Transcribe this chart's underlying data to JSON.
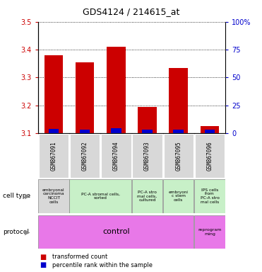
{
  "title": "GDS4124 / 214615_at",
  "samples": [
    "GSM867091",
    "GSM867092",
    "GSM867094",
    "GSM867093",
    "GSM867095",
    "GSM867096"
  ],
  "red_values": [
    3.38,
    3.355,
    3.41,
    3.195,
    3.335,
    3.125
  ],
  "blue_values": [
    3.115,
    3.113,
    3.117,
    3.113,
    3.114,
    3.112
  ],
  "bar_base": 3.1,
  "ylim": [
    3.1,
    3.5
  ],
  "y_ticks_left": [
    3.1,
    3.2,
    3.3,
    3.4,
    3.5
  ],
  "y_ticks_right": [
    0,
    25,
    50,
    75,
    100
  ],
  "y_right_labels": [
    "0",
    "25",
    "50",
    "75",
    "100%"
  ],
  "red_color": "#cc0000",
  "blue_color": "#0000cc",
  "bg_color": "#d8d8d8",
  "cell_type_gray": "#d8d8d8",
  "cell_type_green": "#c8f0c8",
  "protocol_color": "#e878e8",
  "legend_red": "transformed count",
  "legend_blue": "percentile rank within the sample",
  "cell_groups": [
    {
      "start": 0,
      "end": 1,
      "color": "#d8d8d8",
      "text": "embryonal\ncarcinoma\nNCCIT\ncells"
    },
    {
      "start": 1,
      "end": 3,
      "color": "#c8f0c8",
      "text": "PC-A stromal cells,\nsorted"
    },
    {
      "start": 3,
      "end": 4,
      "color": "#c8f0c8",
      "text": "PC-A stro\nmal cells,\ncultured"
    },
    {
      "start": 4,
      "end": 5,
      "color": "#c8f0c8",
      "text": "embryoni\nc stem\ncells"
    },
    {
      "start": 5,
      "end": 6,
      "color": "#c8f0c8",
      "text": "IPS cells\nfrom\nPC-A stro\nmal cells"
    }
  ]
}
